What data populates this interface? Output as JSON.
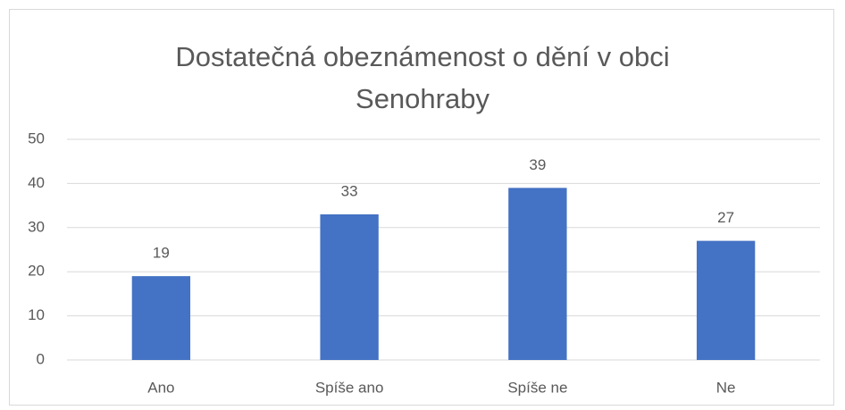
{
  "chart_data": {
    "type": "bar",
    "title": "Dostatečná obeznámenost o dění v obci Senohraby",
    "categories": [
      "Ano",
      "Spíše ano",
      "Spíše ne",
      "Ne"
    ],
    "values": [
      19,
      33,
      39,
      27
    ],
    "color": "#4472c4",
    "ylim": [
      0,
      50
    ],
    "yticks": [
      0,
      10,
      20,
      30,
      40,
      50
    ],
    "grid": true
  }
}
